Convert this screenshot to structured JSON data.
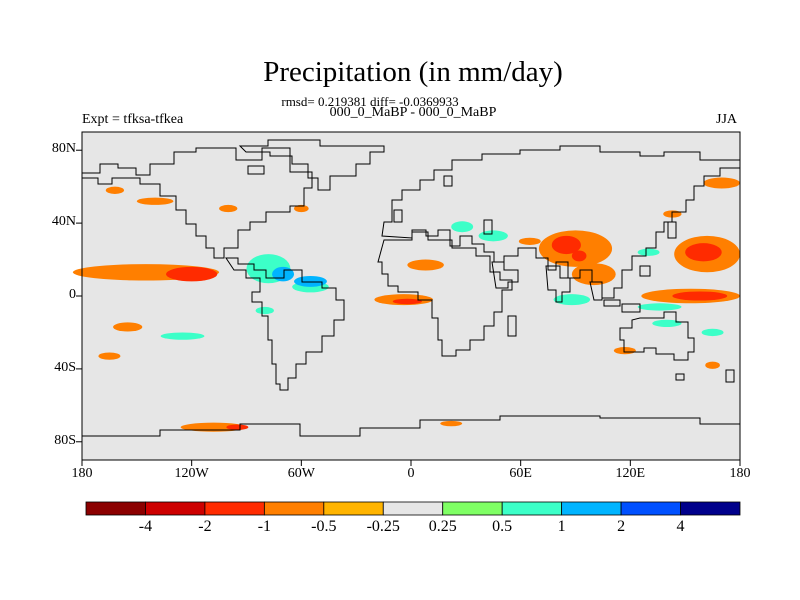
{
  "header": {
    "title": "Precipitation (in mm/day)",
    "stats": "rmsd= 0.219381 diff= -0.0369933",
    "periods": "000_0_MaBP - 000_0_MaBP",
    "experiment": "Expt = tfksa-tfkea",
    "season": "JJA"
  },
  "chart_data": {
    "type": "heatmap",
    "title": "Precipitation (in mm/day)",
    "subtitle": "rmsd= 0.219381 diff= -0.0369933",
    "experiment": "Expt = tfksa-tfkea",
    "periods": "000_0_MaBP - 000_0_MaBP",
    "season": "JJA",
    "xlabel": "",
    "ylabel": "",
    "xlim": [
      -180,
      180
    ],
    "ylim": [
      -90,
      90
    ],
    "x_ticks": [
      {
        "value": -180,
        "label": "180"
      },
      {
        "value": -120,
        "label": "120W"
      },
      {
        "value": -60,
        "label": "60W"
      },
      {
        "value": 0,
        "label": "0"
      },
      {
        "value": 60,
        "label": "60E"
      },
      {
        "value": 120,
        "label": "120E"
      },
      {
        "value": 180,
        "label": "180"
      }
    ],
    "y_ticks": [
      {
        "value": 80,
        "label": "80N"
      },
      {
        "value": 40,
        "label": "40N"
      },
      {
        "value": 0,
        "label": "0"
      },
      {
        "value": -40,
        "label": "40S"
      },
      {
        "value": -80,
        "label": "80S"
      }
    ],
    "background_color": "#e6e6e6",
    "colorbar": {
      "colors": [
        "#8b0000",
        "#cd0000",
        "#ff2b00",
        "#ff7f00",
        "#ffb400",
        "#e6e6e6",
        "#7fff64",
        "#3cffc8",
        "#00b4ff",
        "#0050ff",
        "#00008b"
      ],
      "labels": [
        {
          "boundary": 1,
          "text": "-4"
        },
        {
          "boundary": 2,
          "text": "-2"
        },
        {
          "boundary": 3,
          "text": "-1"
        },
        {
          "boundary": 4,
          "text": "-0.5"
        },
        {
          "boundary": 5,
          "text": "-0.25"
        },
        {
          "boundary": 6,
          "text": "0.25"
        },
        {
          "boundary": 7,
          "text": "0.5"
        },
        {
          "boundary": 8,
          "text": "1"
        },
        {
          "boundary": 9,
          "text": "2"
        },
        {
          "boundary": 10,
          "text": "4"
        }
      ]
    },
    "anomaly_blobs": [
      {
        "lon": -145,
        "lat": 13,
        "rlon": 40,
        "rlat": 4.5,
        "level": -0.5
      },
      {
        "lon": -120,
        "lat": 12,
        "rlon": 14,
        "rlat": 4,
        "level": -1
      },
      {
        "lon": -78,
        "lat": 15,
        "rlon": 12,
        "rlat": 8,
        "level": 0.5
      },
      {
        "lon": -70,
        "lat": 12,
        "rlon": 6,
        "rlat": 4,
        "level": 1
      },
      {
        "lon": -55,
        "lat": 5,
        "rlon": 10,
        "rlat": 3,
        "level": 0.5
      },
      {
        "lon": -55,
        "lat": 8,
        "rlon": 9,
        "rlat": 3,
        "level": 1
      },
      {
        "lon": -162,
        "lat": 58,
        "rlon": 5,
        "rlat": 2,
        "level": -0.5
      },
      {
        "lon": -140,
        "lat": 52,
        "rlon": 10,
        "rlat": 2,
        "level": -0.5
      },
      {
        "lon": -100,
        "lat": 48,
        "rlon": 5,
        "rlat": 2,
        "level": -0.5
      },
      {
        "lon": -60,
        "lat": 48,
        "rlon": 4,
        "rlat": 2,
        "level": -0.5
      },
      {
        "lon": -80,
        "lat": -8,
        "rlon": 5,
        "rlat": 2,
        "level": 0.5
      },
      {
        "lon": -155,
        "lat": -17,
        "rlon": 8,
        "rlat": 2.5,
        "level": -0.5
      },
      {
        "lon": -125,
        "lat": -22,
        "rlon": 12,
        "rlat": 2,
        "level": 0.5
      },
      {
        "lon": -165,
        "lat": -33,
        "rlon": 6,
        "rlat": 2,
        "level": -0.5
      },
      {
        "lon": -108,
        "lat": -72,
        "rlon": 18,
        "rlat": 2.5,
        "level": -0.5
      },
      {
        "lon": -95,
        "lat": -72,
        "rlon": 6,
        "rlat": 1.5,
        "level": -1
      },
      {
        "lon": -4,
        "lat": -2,
        "rlon": 16,
        "rlat": 3,
        "level": -0.5
      },
      {
        "lon": -2,
        "lat": -3,
        "rlon": 8,
        "rlat": 1.5,
        "level": -1
      },
      {
        "lon": 8,
        "lat": 17,
        "rlon": 10,
        "rlat": 3,
        "level": -0.5
      },
      {
        "lon": 45,
        "lat": 33,
        "rlon": 8,
        "rlat": 3,
        "level": 0.5
      },
      {
        "lon": 28,
        "lat": 38,
        "rlon": 6,
        "rlat": 3,
        "level": 0.5
      },
      {
        "lon": 90,
        "lat": 26,
        "rlon": 20,
        "rlat": 10,
        "level": -0.5
      },
      {
        "lon": 85,
        "lat": 28,
        "rlon": 8,
        "rlat": 5,
        "level": -1
      },
      {
        "lon": 92,
        "lat": 22,
        "rlon": 4,
        "rlat": 3,
        "level": -1
      },
      {
        "lon": 100,
        "lat": 12,
        "rlon": 12,
        "rlat": 6,
        "level": -0.5
      },
      {
        "lon": 88,
        "lat": -2,
        "rlon": 10,
        "rlat": 3,
        "level": 0.5
      },
      {
        "lon": 130,
        "lat": 24,
        "rlon": 6,
        "rlat": 2,
        "level": 0.5
      },
      {
        "lon": 162,
        "lat": 23,
        "rlon": 18,
        "rlat": 10,
        "level": -0.5
      },
      {
        "lon": 160,
        "lat": 24,
        "rlon": 10,
        "rlat": 5,
        "level": -1
      },
      {
        "lon": 153,
        "lat": 0,
        "rlon": 27,
        "rlat": 4,
        "level": -0.5
      },
      {
        "lon": 158,
        "lat": 0,
        "rlon": 15,
        "rlat": 2.5,
        "level": -1
      },
      {
        "lon": 170,
        "lat": 62,
        "rlon": 10,
        "rlat": 3,
        "level": -0.5
      },
      {
        "lon": 143,
        "lat": 45,
        "rlon": 5,
        "rlat": 2,
        "level": -0.5
      },
      {
        "lon": 136,
        "lat": -6,
        "rlon": 12,
        "rlat": 2,
        "level": 0.5
      },
      {
        "lon": 140,
        "lat": -15,
        "rlon": 8,
        "rlat": 2,
        "level": 0.5
      },
      {
        "lon": 117,
        "lat": -30,
        "rlon": 6,
        "rlat": 2,
        "level": -0.5
      },
      {
        "lon": 165,
        "lat": -38,
        "rlon": 4,
        "rlat": 2,
        "level": -0.5
      },
      {
        "lon": 165,
        "lat": -20,
        "rlon": 6,
        "rlat": 2,
        "level": 0.5
      },
      {
        "lon": 22,
        "lat": -70,
        "rlon": 6,
        "rlat": 1.5,
        "level": -0.5
      },
      {
        "lon": 65,
        "lat": 30,
        "rlon": 6,
        "rlat": 2,
        "level": -0.5
      }
    ]
  }
}
